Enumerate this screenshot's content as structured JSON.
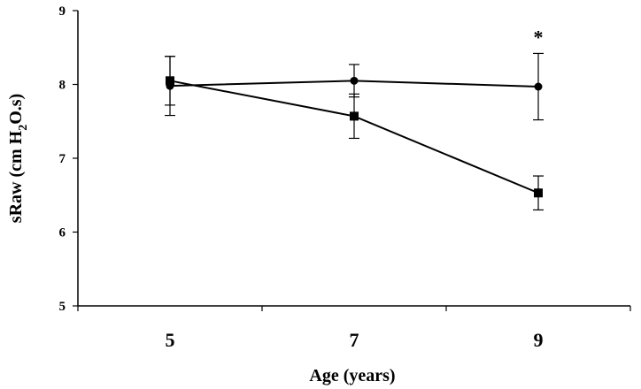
{
  "chart_data": {
    "type": "line",
    "x": [
      5,
      7,
      9
    ],
    "xticks": [
      "5",
      "7",
      "9"
    ],
    "xlim": [
      4,
      10
    ],
    "ylim": [
      5,
      9
    ],
    "yticks": [
      "5",
      "6",
      "7",
      "8",
      "9"
    ],
    "xlabel": "Age (years)",
    "ylabel": {
      "pre": "sRaw (cm H",
      "sub": "2",
      "post": "O.s)"
    },
    "series": [
      {
        "marker": "circle",
        "values": [
          7.98,
          8.05,
          7.97
        ],
        "errors": [
          0.4,
          0.22,
          0.45
        ]
      },
      {
        "marker": "square",
        "values": [
          8.05,
          7.57,
          6.53
        ],
        "errors": [
          0.33,
          0.3,
          0.23
        ]
      }
    ],
    "annotations": [
      {
        "text": "*",
        "x": 9,
        "y": 8.55
      }
    ]
  }
}
